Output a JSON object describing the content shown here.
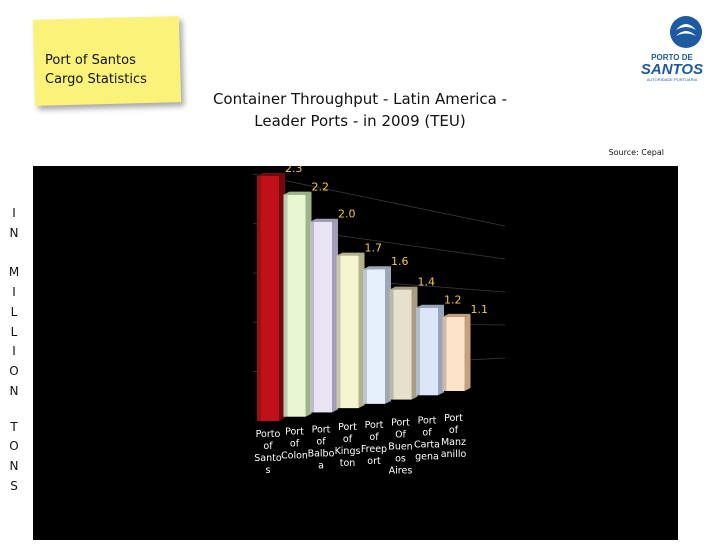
{
  "sticky_note": {
    "line1": "Port of Santos",
    "line2": "Cargo Statistics"
  },
  "logo": {
    "line1": "PORTO DE",
    "line2": "SANTOS",
    "tagline": "AUTORIDADE PORTUÁRIA"
  },
  "source": "Source: Cepal",
  "side_label": [
    "I",
    "N",
    "M",
    "I",
    "L",
    "L",
    "I",
    "O",
    "N",
    "T",
    "O",
    "N",
    "S"
  ],
  "chart_data": {
    "type": "bar",
    "title": "Container Throughput - Latin America - Leader Ports - in 2009 (TEU)",
    "title_lines": [
      "Container Throughput - Latin America -",
      "Leader Ports - in 2009 (TEU)"
    ],
    "ylabel": "IN MILLION TONS",
    "ylim": [
      0,
      2.5
    ],
    "grid": true,
    "categories": [
      "Porto of Santos",
      "Port of Colon",
      "Port of Balboa",
      "Port of Kingston",
      "Port of Freeport",
      "Port Of Buenos Aires",
      "Port of Cartagena",
      "Port of Manzanillo"
    ],
    "category_label_lines": [
      [
        "Porto",
        "of",
        "Santo",
        "s"
      ],
      [
        "Port",
        "of",
        "Colon"
      ],
      [
        "Port",
        "of",
        "Balbo",
        "a"
      ],
      [
        "Port",
        "of",
        "Kings",
        "ton"
      ],
      [
        "Port",
        "of",
        "Freep",
        "ort"
      ],
      [
        "Port",
        "Of",
        "Buen",
        "os",
        "Aires"
      ],
      [
        "Port",
        "of",
        "Carta",
        "gena"
      ],
      [
        "Port",
        "of",
        "Manz",
        "anillo"
      ]
    ],
    "values": [
      2.3,
      2.2,
      2.0,
      1.7,
      1.6,
      1.4,
      1.2,
      1.1
    ],
    "value_labels": [
      "2.3",
      "2.2",
      "2.0",
      "1.7",
      "1.6",
      "1.4",
      "1.2",
      "1.1"
    ],
    "colors": [
      "#c0101a",
      "#e8f6d4",
      "#e8e4f4",
      "#f4f4d0",
      "#e6f0fa",
      "#e6e0cc",
      "#dce6f8",
      "#fde4c8"
    ],
    "side_colors": [
      "#6e0a10",
      "#9cb488",
      "#a29eb8",
      "#b2b28c",
      "#9aa8b8",
      "#a89e84",
      "#98a4bc",
      "#c4a080"
    ],
    "label_color": "#f2c84a"
  }
}
